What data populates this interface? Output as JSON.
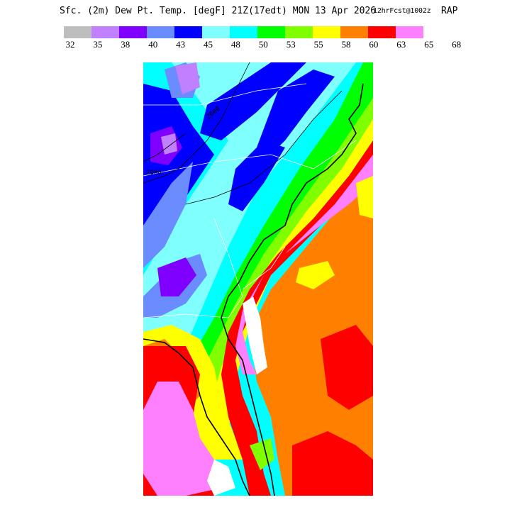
{
  "header": {
    "title": "Sfc. (2m) Dew Pt. Temp. [degF] 21Z(17edt) MON 13 Apr 2026",
    "forecast": "12hrFcst@1002z",
    "model": "RAP"
  },
  "legend": {
    "colors": [
      "#bebebe",
      "#c080ff",
      "#7f00ff",
      "#6a8cff",
      "#0000ff",
      "#80ffff",
      "#00ffff",
      "#00ff00",
      "#80ff00",
      "#ffff00",
      "#ff8000",
      "#ff0000",
      "#ff80ff"
    ],
    "ticks": [
      "32",
      "35",
      "38",
      "40",
      "43",
      "45",
      "48",
      "50",
      "53",
      "55",
      "58",
      "60",
      "63",
      "65",
      "68"
    ]
  },
  "map": {
    "contour_labels": [
      "2000",
      "2000"
    ]
  }
}
